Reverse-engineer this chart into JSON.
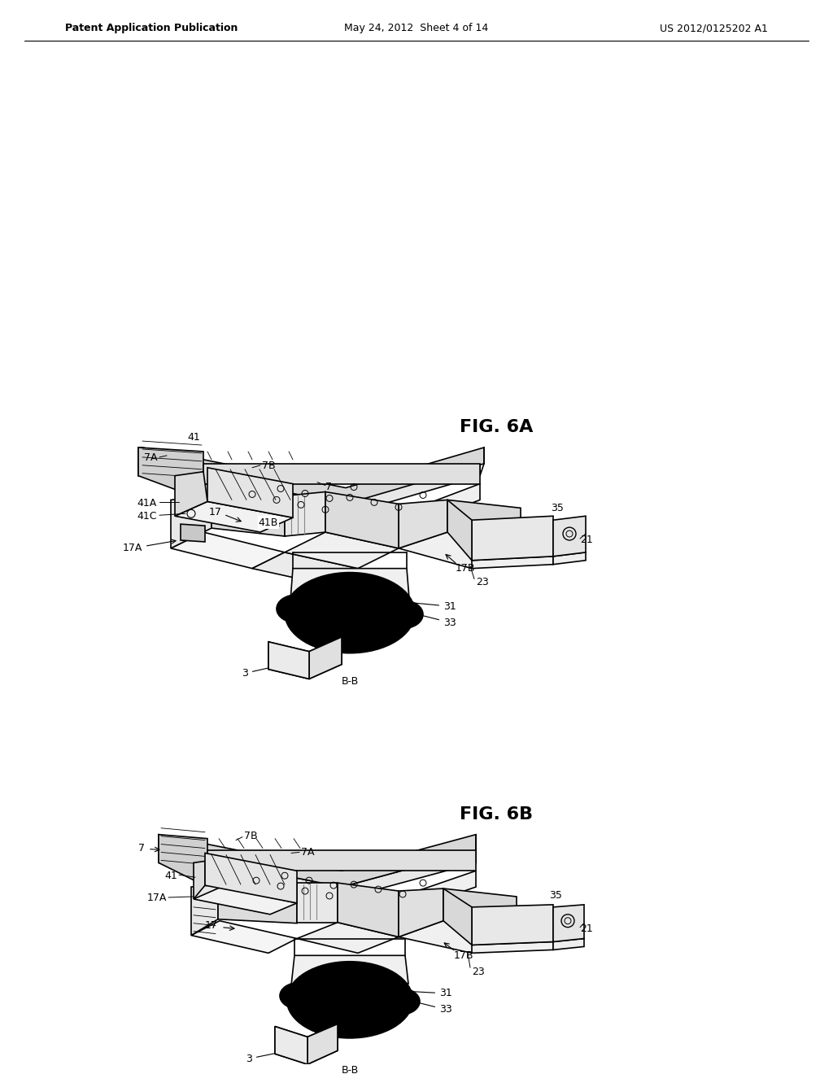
{
  "background_color": "#ffffff",
  "header_left": "Patent Application Publication",
  "header_center": "May 24, 2012  Sheet 4 of 14",
  "header_right": "US 2012/0125202 A1",
  "fig6a_label": "FIG. 6A",
  "fig6b_label": "FIG. 6B",
  "line_color": "#000000",
  "line_width": 1.2,
  "font_size_header": 9,
  "font_size_label": 11,
  "font_size_fig": 16,
  "font_size_ref": 9
}
